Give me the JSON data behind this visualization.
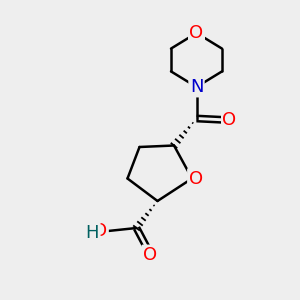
{
  "bg_color": "#eeeeee",
  "atom_colors": {
    "O": "#ff0000",
    "N": "#0000cc",
    "C": "#000000",
    "H": "#006060"
  },
  "bond_color": "#000000",
  "bond_width": 1.8,
  "fig_bg": "#eeeeee",
  "font_size": 13
}
